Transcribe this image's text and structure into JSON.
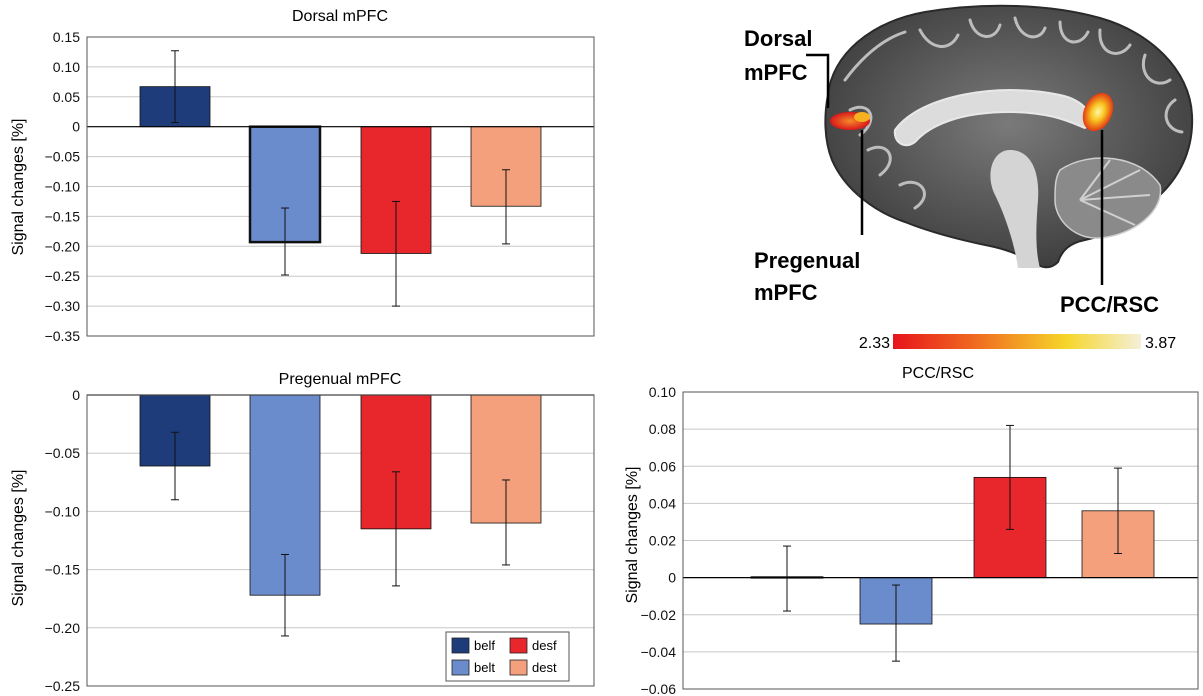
{
  "chart_data": [
    {
      "type": "bar",
      "title": "Dorsal mPFC",
      "ylabel": "Signal changes [%]",
      "categories": [
        "belf",
        "belt",
        "desf",
        "dest"
      ],
      "values": [
        0.067,
        -0.193,
        -0.212,
        -0.133
      ],
      "errors": [
        [
          0.007,
          0.127
        ],
        [
          -0.248,
          -0.136
        ],
        [
          -0.3,
          -0.125
        ],
        [
          -0.196,
          -0.072
        ]
      ],
      "ylim": [
        -0.35,
        0.15
      ],
      "ticks": [
        "0.15",
        "0.10",
        "0.05",
        "0",
        "−0.05",
        "−0.10",
        "−0.15",
        "−0.20",
        "−0.25",
        "−0.30",
        "−0.35"
      ],
      "grid": true
    },
    {
      "type": "bar",
      "title": "Pregenual mPFC",
      "ylabel": "Signal changes [%]",
      "categories": [
        "belf",
        "belt",
        "desf",
        "dest"
      ],
      "values": [
        -0.061,
        -0.172,
        -0.115,
        -0.11
      ],
      "errors": [
        [
          -0.09,
          -0.032
        ],
        [
          -0.207,
          -0.137
        ],
        [
          -0.164,
          -0.066
        ],
        [
          -0.146,
          -0.073
        ]
      ],
      "ylim": [
        -0.25,
        0
      ],
      "ticks": [
        "0",
        "−0.05",
        "−0.10",
        "−0.15",
        "−0.20",
        "−0.25"
      ],
      "grid": true,
      "legend": "bottom-right"
    },
    {
      "type": "bar",
      "title": "PCC/RSC",
      "ylabel": "Signal changes [%]",
      "categories": [
        "belf",
        "belt",
        "desf",
        "dest"
      ],
      "values": [
        0.0005,
        -0.025,
        0.054,
        0.036
      ],
      "errors": [
        [
          -0.018,
          0.017
        ],
        [
          -0.045,
          -0.004
        ],
        [
          0.026,
          0.082
        ],
        [
          0.013,
          0.059
        ]
      ],
      "ylim": [
        -0.06,
        0.1
      ],
      "ticks": [
        "0.10",
        "0.08",
        "0.06",
        "0.04",
        "0.02",
        "0",
        "−0.02",
        "−0.04",
        "−0.06"
      ],
      "grid": true
    }
  ],
  "colors": {
    "belf": "#1f3c7a",
    "belt": "#6b8ccc",
    "desf": "#e8272d",
    "dest": "#f4a07c"
  },
  "legend": [
    {
      "label": "belf",
      "key": "belf"
    },
    {
      "label": "desf",
      "key": "desf"
    },
    {
      "label": "belt",
      "key": "belt"
    },
    {
      "label": "dest",
      "key": "dest"
    }
  ],
  "brain": {
    "labels": {
      "dorsal_line1": "Dorsal",
      "dorsal_line2": "mPFC",
      "pregenual_line1": "Pregenual",
      "pregenual_line2": "mPFC",
      "pcc": "PCC/RSC"
    },
    "colorbar": {
      "min": "2.33",
      "max": "3.87",
      "colors": [
        "#e8141c",
        "#f07020",
        "#f6d62a",
        "#f4f0d8"
      ]
    }
  }
}
